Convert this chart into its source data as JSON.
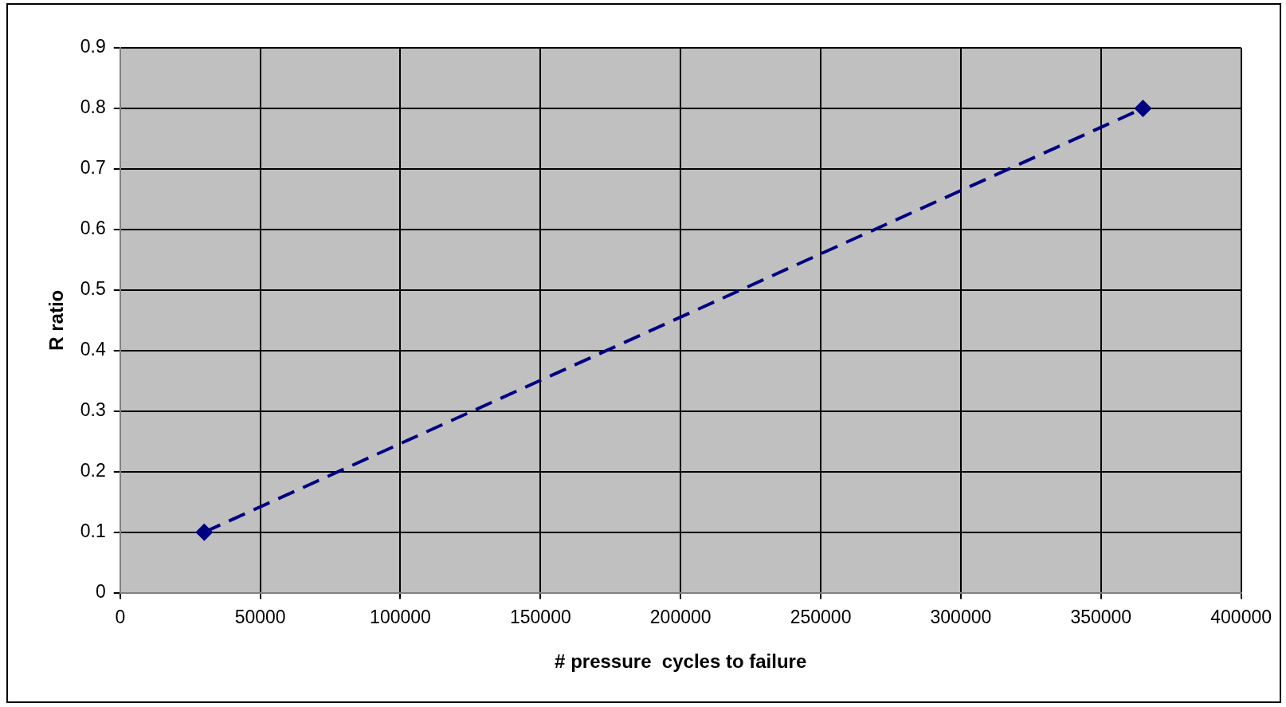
{
  "chart_data": {
    "type": "line",
    "xlabel": "# pressure  cycles to failure",
    "ylabel": "R ratio",
    "x": [
      30000,
      365000
    ],
    "series": [
      {
        "color": "#000080",
        "values": [
          0.1,
          0.8
        ]
      }
    ],
    "xlim": [
      0,
      400000
    ],
    "xticks": [
      0,
      50000,
      100000,
      150000,
      200000,
      250000,
      300000,
      350000,
      400000
    ],
    "ylim": [
      0,
      0.9
    ],
    "yticks": [
      0,
      0.1,
      0.2,
      0.3,
      0.4,
      0.5,
      0.6,
      0.7,
      0.8,
      0.9
    ],
    "grid": true,
    "marker": "diamond",
    "line_style": "dashed",
    "legend": false
  }
}
